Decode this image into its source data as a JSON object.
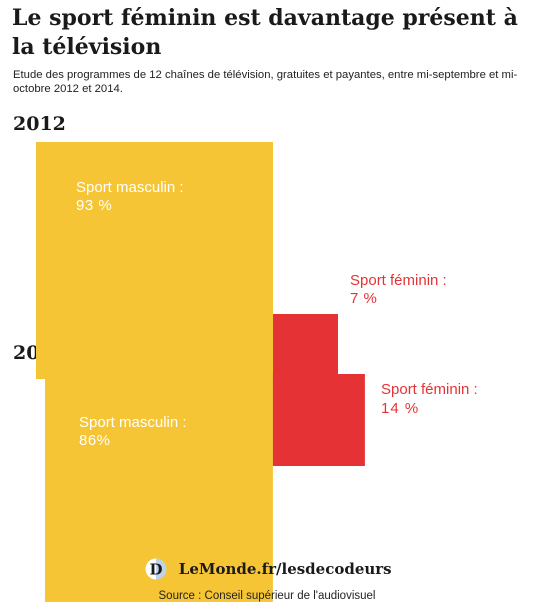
{
  "header": {
    "title": "Le sport féminin est davantage présent à la télévision",
    "subtitle": "Etude des programmes de 12 chaînes de télévision, gratuites et payantes, entre mi-septembre et mi-octobre 2012 et 2014."
  },
  "colors": {
    "masculin": "#F6C535",
    "feminin": "#E53335",
    "masculin_label": "#ffffff",
    "feminin_label": "#E53335"
  },
  "chart_data": [
    {
      "type": "area",
      "title": "2012",
      "categories": [
        "Sport masculin",
        "Sport féminin"
      ],
      "values": [
        93,
        7
      ],
      "unit": "%",
      "labels": [
        {
          "name": "Sport masculin :",
          "value": "93 %"
        },
        {
          "name": "Sport féminin :",
          "value": "7 %"
        }
      ]
    },
    {
      "type": "area",
      "title": "2014",
      "categories": [
        "Sport masculin",
        "Sport féminin"
      ],
      "values": [
        86,
        14
      ],
      "unit": "%",
      "labels": [
        {
          "name": "Sport masculin :",
          "value": "86%"
        },
        {
          "name": "Sport féminin :",
          "value": "14 %"
        }
      ]
    }
  ],
  "footer": {
    "logo_letter": "D",
    "brand": "LeMonde.fr/lesdecodeurs",
    "source": "Source : Conseil supérieur de l'audiovisuel"
  }
}
